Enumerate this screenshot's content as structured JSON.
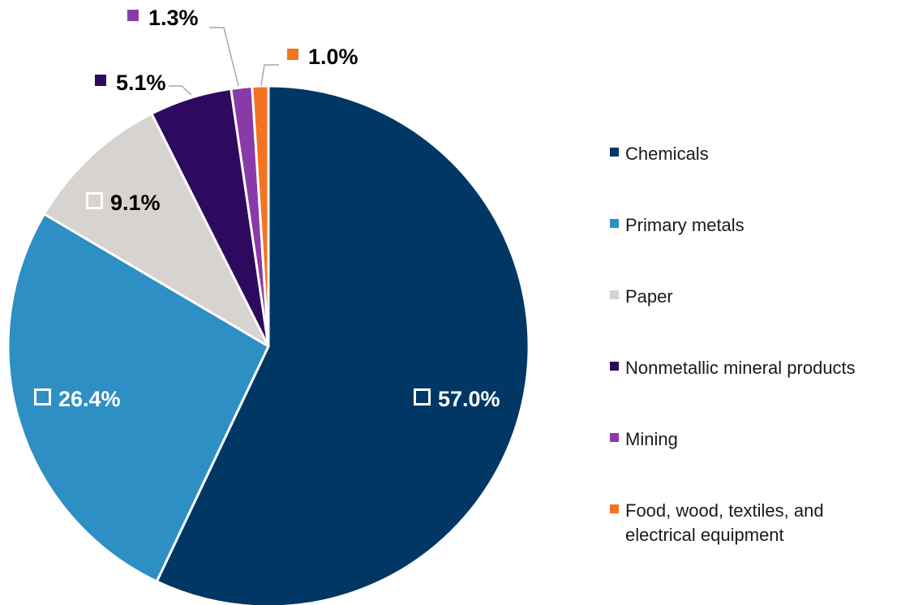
{
  "chart_data": {
    "type": "pie",
    "slices": [
      {
        "name": "Chemicals",
        "value": 57.0,
        "label": "57.0%",
        "color": "#003764"
      },
      {
        "name": "Primary metals",
        "value": 26.4,
        "label": "26.4%",
        "color": "#2e8fc4"
      },
      {
        "name": "Paper",
        "value": 9.1,
        "label": "9.1%",
        "color": "#d7d3d0"
      },
      {
        "name": "Nonmetallic mineral products",
        "value": 5.1,
        "label": "5.1%",
        "color": "#2e0a5e"
      },
      {
        "name": "Mining",
        "value": 1.3,
        "label": "1.3%",
        "color": "#8a3aa8"
      },
      {
        "name": "Food, wood, textiles, and electrical equipment",
        "value": 1.0,
        "label": "1.0%",
        "color": "#f47321"
      }
    ],
    "legend_position": "right"
  }
}
